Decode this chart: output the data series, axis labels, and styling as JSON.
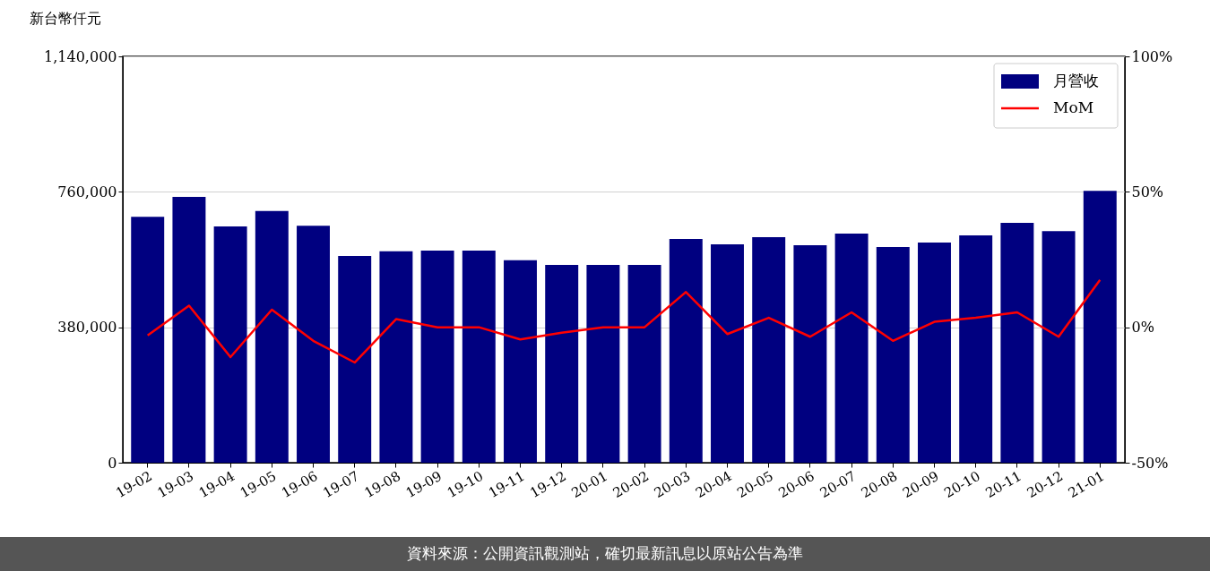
{
  "chart_data": {
    "type": "bar",
    "ylabel": "新台幣仟元",
    "categories": [
      "19-02",
      "19-03",
      "19-04",
      "19-05",
      "19-06",
      "19-07",
      "19-08",
      "19-09",
      "19-10",
      "19-11",
      "19-12",
      "20-01",
      "20-02",
      "20-03",
      "20-04",
      "20-05",
      "20-06",
      "20-07",
      "20-08",
      "20-09",
      "20-10",
      "20-11",
      "20-12",
      "21-01"
    ],
    "series": [
      {
        "name": "月營收",
        "type": "bar",
        "color": "#000080",
        "values": [
          690000,
          746000,
          663000,
          706000,
          665000,
          580000,
          593000,
          595000,
          595000,
          568000,
          555000,
          555000,
          555000,
          628000,
          613000,
          633000,
          610000,
          643000,
          605000,
          618000,
          638000,
          673000,
          650000,
          763000
        ]
      },
      {
        "name": "MoM",
        "type": "line",
        "axis": "y2",
        "color": "#ff0000",
        "values": [
          -3,
          8,
          -11,
          6.5,
          -5,
          -13,
          3,
          0,
          0,
          -4.5,
          -2,
          0,
          0,
          13,
          -2.5,
          3.5,
          -3.5,
          5.5,
          -5,
          2,
          3.5,
          5.5,
          -3.5,
          17.5
        ]
      }
    ],
    "ylim": [
      0,
      1140000
    ],
    "yticks": [
      0,
      {
        "value": 380000,
        "label": "380,000"
      },
      {
        "value": 760000,
        "label": "760,000"
      },
      {
        "value": 1140000,
        "label": "1,140,000"
      }
    ],
    "y2lim": [
      -50,
      100
    ],
    "y2ticks": [
      {
        "value": -50,
        "label": "-50%"
      },
      {
        "value": 0,
        "label": "0%"
      },
      {
        "value": 50,
        "label": "50%"
      },
      {
        "value": 100,
        "label": "100%"
      }
    ],
    "grid": "y",
    "legend": "top right",
    "annotations": [
      "資料來源：公開資訊觀測站，確切最新訊息以原站公告為準"
    ]
  }
}
